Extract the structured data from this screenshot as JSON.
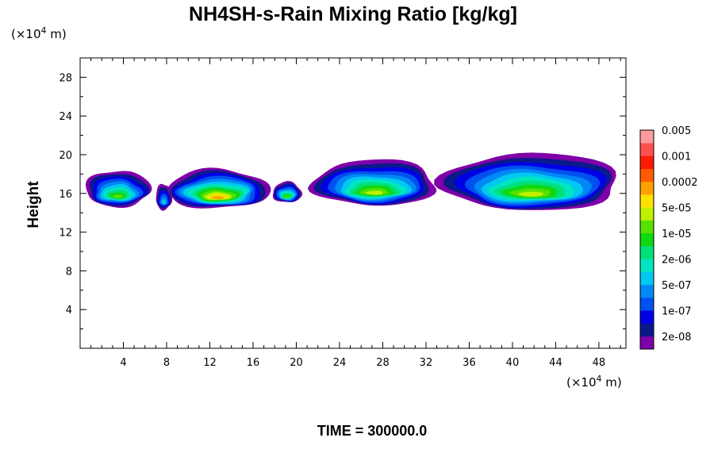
{
  "chart_data": {
    "type": "heatmap",
    "title": "NH4SH-s-Rain Mixing Ratio [kg/kg]",
    "ylabel": "Height",
    "x_unit": "(×10",
    "x_unit_exp": "4",
    "x_unit_tail": " m)",
    "y_unit": "(×10",
    "y_unit_exp": "4",
    "y_unit_tail": " m)",
    "xlim": [
      0,
      50.5
    ],
    "ylim": [
      0,
      30
    ],
    "x_ticks": [
      4,
      8,
      12,
      16,
      20,
      24,
      28,
      32,
      36,
      40,
      44,
      48
    ],
    "x_tick_labels": [
      "4",
      "8",
      "12",
      "16",
      "20",
      "24",
      "28",
      "32",
      "36",
      "40",
      "44",
      "48"
    ],
    "y_ticks": [
      4,
      8,
      12,
      16,
      20,
      24,
      28
    ],
    "y_tick_labels": [
      "4",
      "8",
      "12",
      "16",
      "20",
      "24",
      "28"
    ],
    "colorbar": {
      "colors": [
        "#7f00a8",
        "#0a1a8a",
        "#0000e6",
        "#0050f0",
        "#0088f5",
        "#00c8f0",
        "#00e6c0",
        "#00e07a",
        "#10d810",
        "#58e000",
        "#c0f000",
        "#ffe000",
        "#ffa000",
        "#ff5a00",
        "#ff1a00",
        "#ff5050",
        "#ff9a9a"
      ],
      "labels": [
        "2e-08",
        "1e-07",
        "5e-07",
        "2e-06",
        "1e-05",
        "5e-05",
        "0.0002",
        "0.001",
        "0.005"
      ]
    },
    "cells": [
      {
        "x0": 0.5,
        "x1": 6.5,
        "y0": 14.2,
        "y1": 18.4,
        "peak": 9
      },
      {
        "x0": 7.0,
        "x1": 8.5,
        "y0": 14.0,
        "y1": 17.0,
        "peak": 5
      },
      {
        "x0": 8.0,
        "x1": 17.5,
        "y0": 14.0,
        "y1": 18.5,
        "peak": 12
      },
      {
        "x0": 17.8,
        "x1": 20.5,
        "y0": 14.8,
        "y1": 17.2,
        "peak": 9
      },
      {
        "x0": 21.5,
        "x1": 33.0,
        "y0": 14.2,
        "y1": 19.5,
        "peak": 10
      },
      {
        "x0": 33.5,
        "x1": 50.0,
        "y0": 13.6,
        "y1": 20.2,
        "peak": 10
      }
    ],
    "time_label": "TIME = 300000.0"
  }
}
